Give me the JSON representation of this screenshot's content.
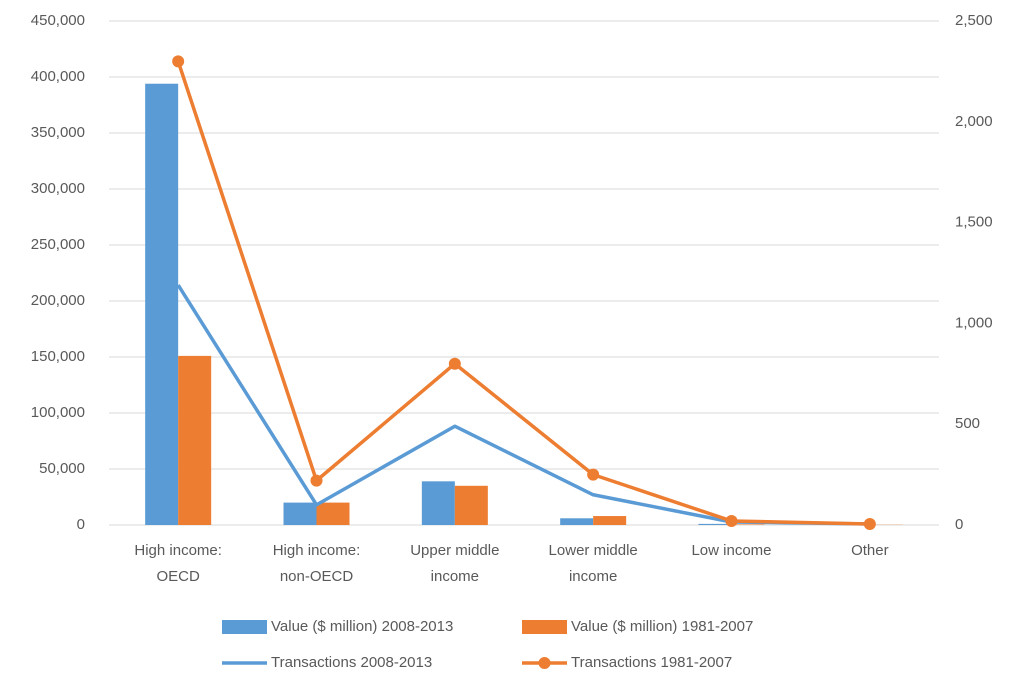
{
  "chart_data": {
    "type": "bar",
    "categories": [
      "High income: OECD",
      "High income: non-OECD",
      "Upper middle income",
      "Lower middle income",
      "Low income",
      "Other"
    ],
    "series": [
      {
        "name": "Value ($ million) 2008-2013",
        "type": "bar",
        "color": "#5b9bd5",
        "values": [
          394000,
          20000,
          39000,
          6000,
          1000,
          500
        ]
      },
      {
        "name": "Value ($ million) 1981-2007",
        "type": "bar",
        "color": "#ed7d31",
        "values": [
          151000,
          20000,
          35000,
          8000,
          500,
          200
        ]
      },
      {
        "name": "Transactions 2008-2013",
        "type": "line",
        "axis": "y2",
        "color": "#5b9bd5",
        "marker": false,
        "values": [
          1190,
          100,
          490,
          150,
          15,
          5
        ]
      },
      {
        "name": "Transactions 1981-2007",
        "type": "line",
        "axis": "y2",
        "color": "#ed7d31",
        "marker": true,
        "values": [
          2300,
          220,
          800,
          250,
          20,
          5
        ]
      }
    ],
    "ylim": [
      0,
      450000
    ],
    "yticks": [
      0,
      {
        "value": 50000,
        "label": "50,000"
      },
      {
        "value": 100000,
        "label": "100,000"
      },
      {
        "value": 150000,
        "label": "150,000"
      },
      {
        "value": 200000,
        "label": "200,000"
      },
      {
        "value": 250000,
        "label": "250,000"
      },
      {
        "value": 300000,
        "label": "300,000"
      },
      {
        "value": 350000,
        "label": "350,000"
      },
      {
        "value": 400000,
        "label": "400,000"
      },
      {
        "value": 450000,
        "label": "450,000"
      }
    ],
    "y2lim": [
      0,
      2500
    ],
    "y2ticks": [
      0,
      500,
      {
        "value": 1000,
        "label": "1,000"
      },
      {
        "value": 1500,
        "label": "1,500"
      },
      {
        "value": 2000,
        "label": "2,000"
      },
      {
        "value": 2500,
        "label": "2,500"
      }
    ],
    "grid": true,
    "legend": "bottom"
  }
}
